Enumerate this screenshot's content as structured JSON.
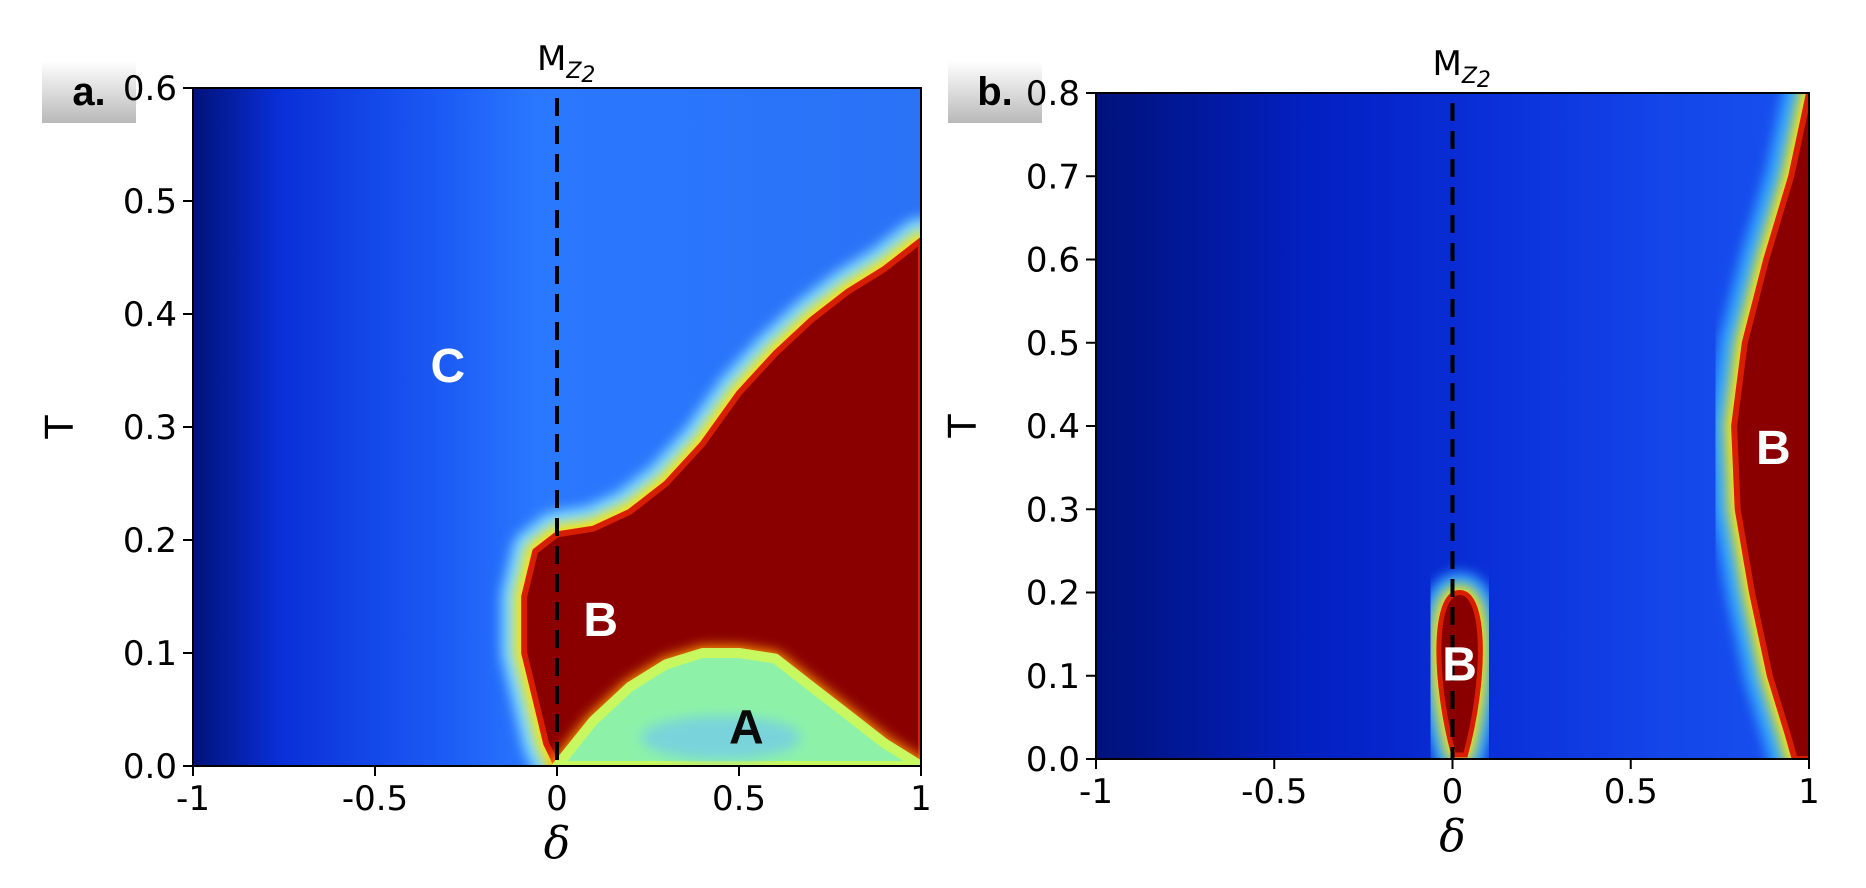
{
  "chart_data": [
    {
      "type": "heatmap",
      "panel_label": "a.",
      "xlabel": "δ",
      "ylabel": "T",
      "xlim": [
        -1,
        1
      ],
      "ylim": [
        0,
        0.6
      ],
      "xticks": [
        -1,
        -0.5,
        0,
        0.5,
        1
      ],
      "xtick_labels": [
        "-1",
        "-0.5",
        "0",
        "0.5",
        "1"
      ],
      "yticks": [
        0.0,
        0.1,
        0.2,
        0.3,
        0.4,
        0.5,
        0.6
      ],
      "ytick_labels": [
        "0.0",
        "0.1",
        "0.2",
        "0.3",
        "0.4",
        "0.5",
        "0.6"
      ],
      "colormap": "jet",
      "marker_line": {
        "x": 0,
        "style": "dashed",
        "label": "M",
        "label_sub": "Z2"
      },
      "regions": [
        {
          "label": "C",
          "x": -0.3,
          "y": 0.355,
          "color": "#ffffff"
        },
        {
          "label": "B",
          "x": 0.12,
          "y": 0.13,
          "color": "#ffffff"
        },
        {
          "label": "A",
          "x": 0.52,
          "y": 0.035,
          "color": "#0a0a0a"
        }
      ],
      "boundary_B_upper": [
        [
          0,
          0.205
        ],
        [
          0.1,
          0.21
        ],
        [
          0.2,
          0.225
        ],
        [
          0.3,
          0.25
        ],
        [
          0.4,
          0.285
        ],
        [
          0.5,
          0.33
        ],
        [
          0.6,
          0.365
        ],
        [
          0.7,
          0.395
        ],
        [
          0.8,
          0.42
        ],
        [
          0.9,
          0.44
        ],
        [
          1.0,
          0.465
        ]
      ],
      "boundary_A": [
        [
          0.0,
          0.0
        ],
        [
          0.1,
          0.04
        ],
        [
          0.2,
          0.07
        ],
        [
          0.3,
          0.09
        ],
        [
          0.4,
          0.1
        ],
        [
          0.5,
          0.1
        ],
        [
          0.6,
          0.095
        ],
        [
          0.7,
          0.07
        ],
        [
          0.8,
          0.045
        ],
        [
          0.9,
          0.02
        ],
        [
          1.0,
          0.0
        ]
      ],
      "boundary_B_left": [
        [
          0,
          0.205
        ],
        [
          -0.06,
          0.19
        ],
        [
          -0.09,
          0.15
        ],
        [
          -0.09,
          0.1
        ],
        [
          -0.06,
          0.06
        ],
        [
          -0.03,
          0.02
        ],
        [
          0,
          0.0
        ]
      ]
    },
    {
      "type": "heatmap",
      "panel_label": "b.",
      "xlabel": "δ",
      "ylabel": "T",
      "xlim": [
        -1,
        1
      ],
      "ylim": [
        0,
        0.8
      ],
      "xticks": [
        -1,
        -0.5,
        0,
        0.5,
        1
      ],
      "xtick_labels": [
        "-1",
        "-0.5",
        "0",
        "0.5",
        "1"
      ],
      "yticks": [
        0.0,
        0.1,
        0.2,
        0.3,
        0.4,
        0.5,
        0.6,
        0.7,
        0.8
      ],
      "ytick_labels": [
        "0.0",
        "0.1",
        "0.2",
        "0.3",
        "0.4",
        "0.5",
        "0.6",
        "0.7",
        "0.8"
      ],
      "colormap": "jet",
      "marker_line": {
        "x": 0,
        "style": "dashed",
        "label": "M",
        "label_sub": "Z2"
      },
      "regions": [
        {
          "label": "B",
          "x": 0.02,
          "y": 0.115,
          "color": "#ffffff"
        },
        {
          "label": "B",
          "x": 0.9,
          "y": 0.375,
          "color": "#ffffff"
        }
      ],
      "pocket_B": {
        "center": [
          0.02,
          0.1
        ],
        "half_width": 0.065,
        "top": 0.2
      },
      "boundary_B_right": [
        [
          1.0,
          0.8
        ],
        [
          0.95,
          0.7
        ],
        [
          0.88,
          0.6
        ],
        [
          0.82,
          0.5
        ],
        [
          0.79,
          0.4
        ],
        [
          0.8,
          0.3
        ],
        [
          0.84,
          0.2
        ],
        [
          0.89,
          0.1
        ],
        [
          0.94,
          0.03
        ],
        [
          0.96,
          0.0
        ]
      ]
    }
  ]
}
